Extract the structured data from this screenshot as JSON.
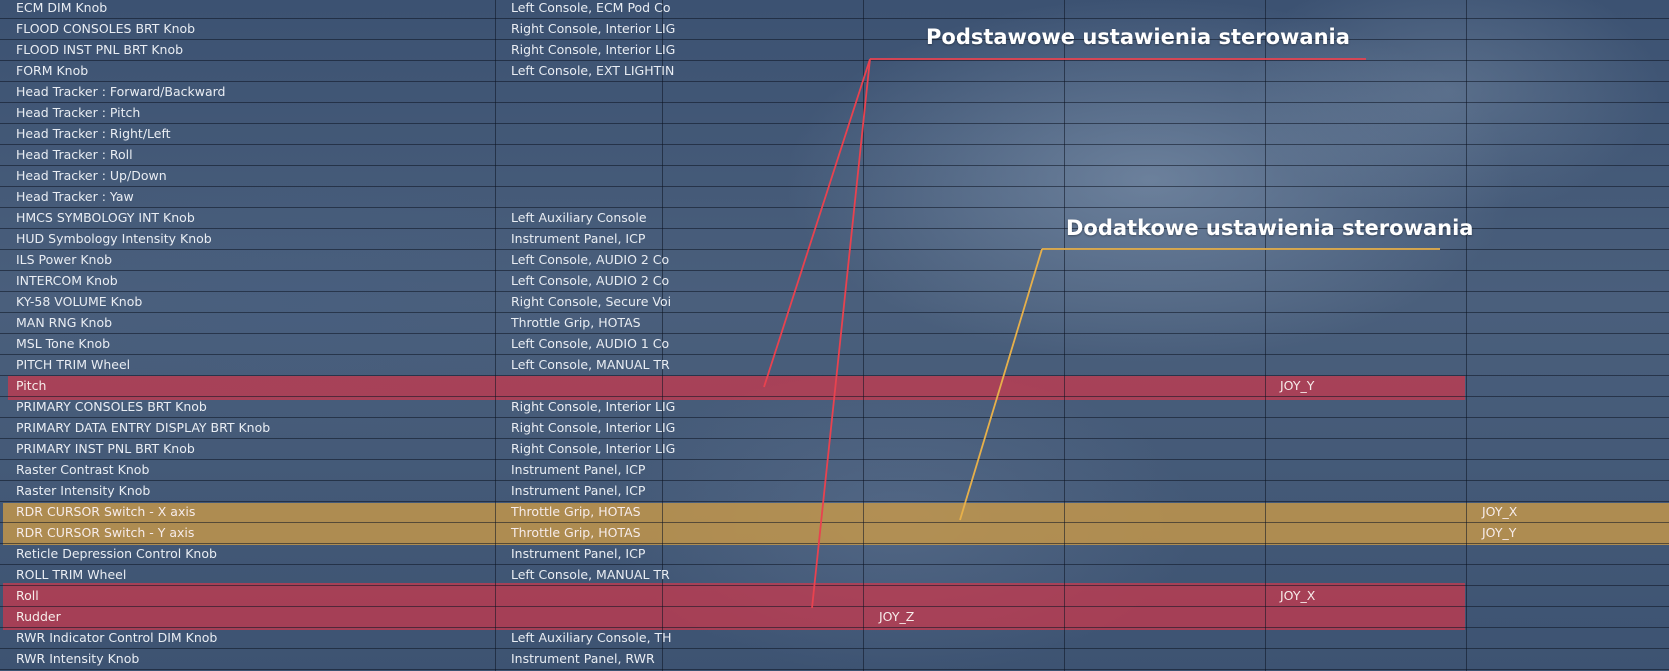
{
  "table": {
    "rows": [
      {
        "name": "ECM DIM Knob",
        "category": "Left Console, ECM Pod Co",
        "a": "",
        "b": "",
        "c": "",
        "hl": ""
      },
      {
        "name": "FLOOD CONSOLES BRT Knob",
        "category": "Right Console, Interior LIG",
        "a": "",
        "b": "",
        "c": "",
        "hl": ""
      },
      {
        "name": "FLOOD INST PNL BRT Knob",
        "category": "Right Console, Interior LIG",
        "a": "",
        "b": "",
        "c": "",
        "hl": ""
      },
      {
        "name": "FORM Knob",
        "category": "Left Console, EXT LIGHTIN",
        "a": "",
        "b": "",
        "c": "",
        "hl": ""
      },
      {
        "name": "Head Tracker : Forward/Backward",
        "category": "",
        "a": "",
        "b": "",
        "c": "",
        "hl": ""
      },
      {
        "name": "Head Tracker : Pitch",
        "category": "",
        "a": "",
        "b": "",
        "c": "",
        "hl": ""
      },
      {
        "name": "Head Tracker : Right/Left",
        "category": "",
        "a": "",
        "b": "",
        "c": "",
        "hl": ""
      },
      {
        "name": "Head Tracker : Roll",
        "category": "",
        "a": "",
        "b": "",
        "c": "",
        "hl": ""
      },
      {
        "name": "Head Tracker : Up/Down",
        "category": "",
        "a": "",
        "b": "",
        "c": "",
        "hl": ""
      },
      {
        "name": "Head Tracker : Yaw",
        "category": "",
        "a": "",
        "b": "",
        "c": "",
        "hl": ""
      },
      {
        "name": "HMCS SYMBOLOGY INT Knob",
        "category": "Left Auxiliary Console",
        "a": "",
        "b": "",
        "c": "",
        "hl": ""
      },
      {
        "name": "HUD Symbology Intensity Knob",
        "category": "Instrument Panel, ICP",
        "a": "",
        "b": "",
        "c": "",
        "hl": ""
      },
      {
        "name": "ILS Power Knob",
        "category": "Left Console, AUDIO 2 Co",
        "a": "",
        "b": "",
        "c": "",
        "hl": ""
      },
      {
        "name": "INTERCOM Knob",
        "category": "Left Console, AUDIO 2 Co",
        "a": "",
        "b": "",
        "c": "",
        "hl": ""
      },
      {
        "name": "KY-58 VOLUME Knob",
        "category": "Right Console, Secure Voi",
        "a": "",
        "b": "",
        "c": "",
        "hl": ""
      },
      {
        "name": "MAN RNG Knob",
        "category": "Throttle Grip, HOTAS",
        "a": "",
        "b": "",
        "c": "",
        "hl": ""
      },
      {
        "name": "MSL Tone Knob",
        "category": "Left Console, AUDIO 1 Co",
        "a": "",
        "b": "",
        "c": "",
        "hl": ""
      },
      {
        "name": "PITCH TRIM Wheel",
        "category": "Left Console, MANUAL TR",
        "a": "",
        "b": "",
        "c": "",
        "hl": ""
      },
      {
        "name": "Pitch",
        "category": "",
        "a": "",
        "b": "JOY_Y",
        "c": "",
        "hl": "red"
      },
      {
        "name": "PRIMARY CONSOLES BRT Knob",
        "category": "Right Console, Interior LIG",
        "a": "",
        "b": "",
        "c": "",
        "hl": ""
      },
      {
        "name": "PRIMARY DATA ENTRY DISPLAY BRT Knob",
        "category": "Right Console, Interior LIG",
        "a": "",
        "b": "",
        "c": "",
        "hl": ""
      },
      {
        "name": "PRIMARY INST PNL BRT Knob",
        "category": "Right Console, Interior LIG",
        "a": "",
        "b": "",
        "c": "",
        "hl": ""
      },
      {
        "name": "Raster Contrast Knob",
        "category": "Instrument Panel, ICP",
        "a": "",
        "b": "",
        "c": "",
        "hl": ""
      },
      {
        "name": "Raster Intensity Knob",
        "category": "Instrument Panel, ICP",
        "a": "",
        "b": "",
        "c": "",
        "hl": ""
      },
      {
        "name": "RDR CURSOR Switch - X axis",
        "category": "Throttle Grip, HOTAS",
        "a": "",
        "b": "",
        "c": "JOY_X",
        "hl": "orange"
      },
      {
        "name": "RDR CURSOR Switch - Y axis",
        "category": "Throttle Grip, HOTAS",
        "a": "",
        "b": "",
        "c": "JOY_Y",
        "hl": "orange"
      },
      {
        "name": "Reticle Depression Control Knob",
        "category": "Instrument Panel, ICP",
        "a": "",
        "b": "",
        "c": "",
        "hl": ""
      },
      {
        "name": "ROLL TRIM Wheel",
        "category": "Left Console, MANUAL TR",
        "a": "",
        "b": "",
        "c": "",
        "hl": ""
      },
      {
        "name": "Roll",
        "category": "",
        "a": "",
        "b": "JOY_X",
        "c": "",
        "hl": "red"
      },
      {
        "name": "Rudder",
        "category": "",
        "a": "JOY_Z",
        "b": "",
        "c": "",
        "hl": "red"
      },
      {
        "name": "RWR Indicator Control DIM Knob",
        "category": "Left Auxiliary Console, TH",
        "a": "",
        "b": "",
        "c": "",
        "hl": ""
      },
      {
        "name": "RWR Intensity Knob",
        "category": "Instrument Panel, RWR",
        "a": "",
        "b": "",
        "c": "",
        "hl": ""
      }
    ]
  },
  "callouts": {
    "basic": {
      "label": "Podstawowe ustawienia sterowania",
      "color": "#e8424f"
    },
    "additional": {
      "label": "Dodatkowe ustawienia sterowania",
      "color": "#e7b04a"
    }
  },
  "colors": {
    "highlight_basic": "#cd374b",
    "highlight_additional": "#cd9b46"
  }
}
